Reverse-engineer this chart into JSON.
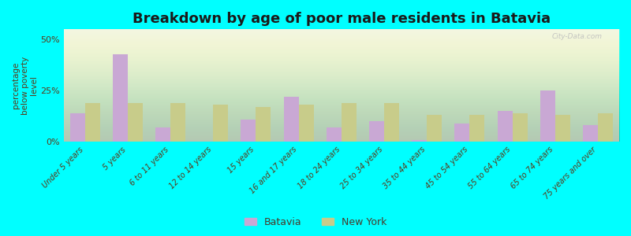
{
  "title": "Breakdown by age of poor male residents in Batavia",
  "ylabel": "percentage\nbelow poverty\nlevel",
  "categories": [
    "Under 5 years",
    "5 years",
    "6 to 11 years",
    "12 to 14 years",
    "15 years",
    "16 and 17 years",
    "18 to 24 years",
    "25 to 34 years",
    "35 to 44 years",
    "45 to 54 years",
    "55 to 64 years",
    "65 to 74 years",
    "75 years and over"
  ],
  "batavia_values": [
    14,
    43,
    7,
    0,
    11,
    22,
    7,
    10,
    1,
    9,
    15,
    25,
    8
  ],
  "newyork_values": [
    19,
    19,
    19,
    18,
    17,
    18,
    19,
    19,
    13,
    13,
    14,
    13,
    14
  ],
  "batavia_color": "#c9a8d4",
  "newyork_color": "#c8cc8a",
  "background_color": "#00ffff",
  "ylim": [
    0,
    55
  ],
  "yticks": [
    0,
    25,
    50
  ],
  "ytick_labels": [
    "0%",
    "25%",
    "50%"
  ],
  "bar_width": 0.35,
  "title_fontsize": 13,
  "legend_labels": [
    "Batavia",
    "New York"
  ],
  "watermark": "City-Data.com",
  "grad_top_color": "#eef2e0",
  "grad_bottom_color": "#f8faf0"
}
